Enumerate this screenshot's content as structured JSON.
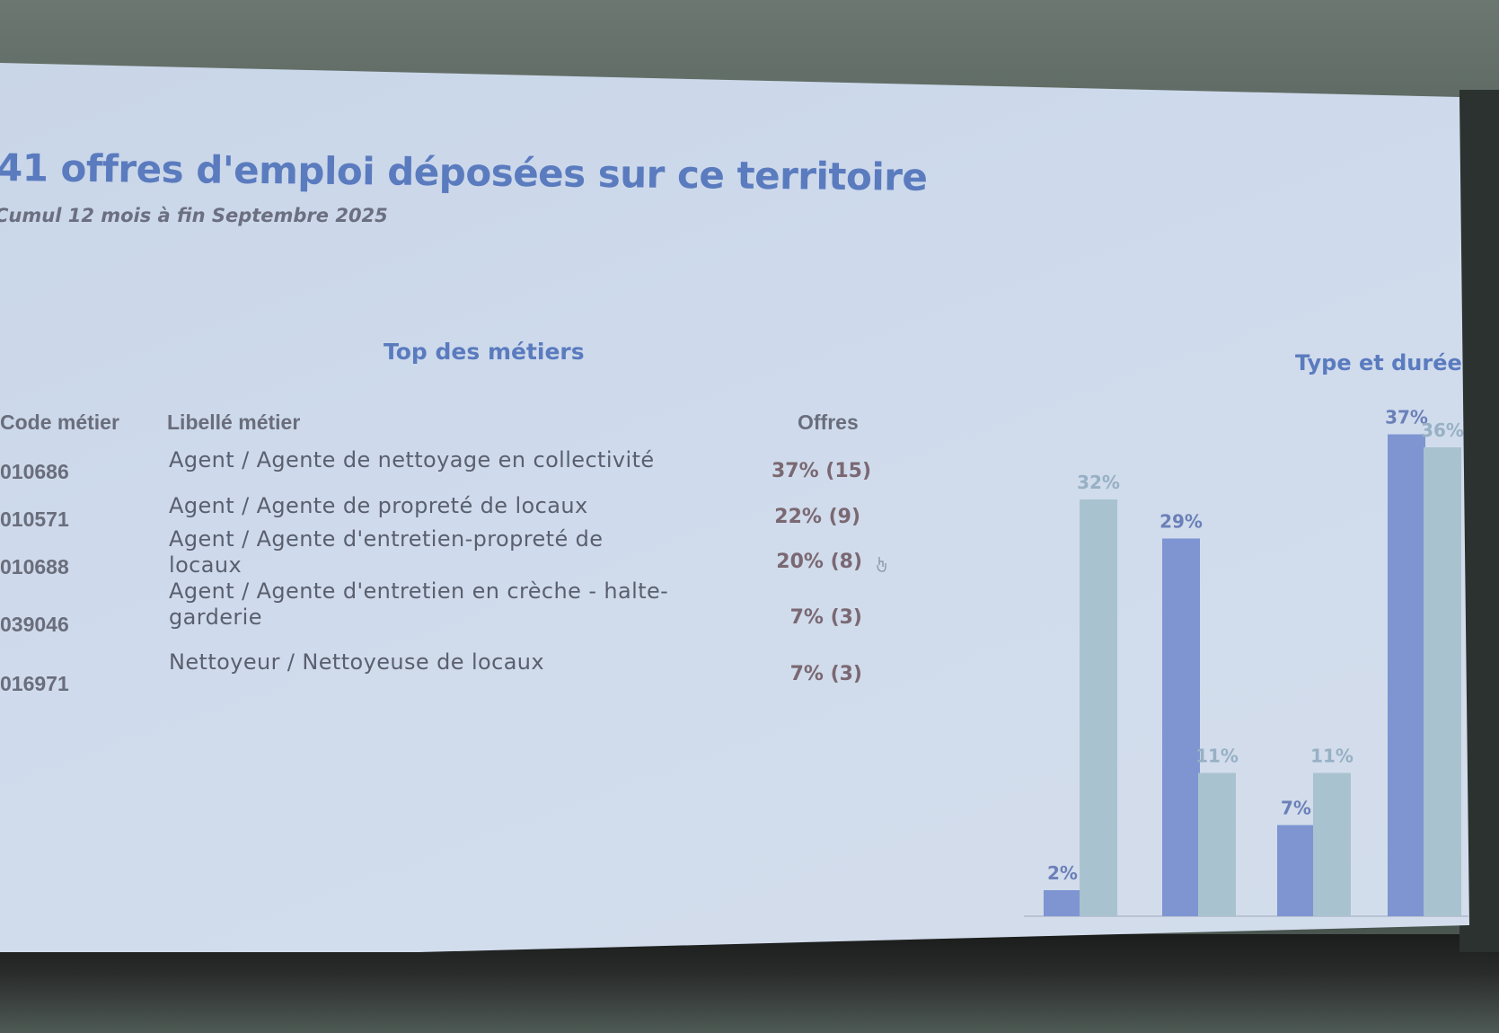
{
  "slide": {
    "title": "41 offres d'emploi déposées sur ce territoire",
    "subtitle": "Cumul 12 mois à fin Septembre 2025"
  },
  "top_metiers": {
    "title": "Top des métiers",
    "headers": {
      "code": "Code métier",
      "label": "Libellé métier",
      "offers": "Offres"
    },
    "rows": [
      {
        "code": "010686",
        "label": "Agent / Agente de nettoyage en collectivité",
        "offers": "37% (15)"
      },
      {
        "code": "010571",
        "label": "Agent / Agente de propreté de locaux",
        "offers": "22% (9)"
      },
      {
        "code": "010688",
        "label": "Agent / Agente d'entretien-propreté de locaux",
        "offers": "20% (8)"
      },
      {
        "code": "039046",
        "label": "Agent / Agente d'entretien en crèche - halte-garderie",
        "offers": "7% (3)"
      },
      {
        "code": "016971",
        "label": "Nettoyeur / Nettoyeuse de locaux",
        "offers": "7% (3)"
      }
    ]
  },
  "chart_data": {
    "type": "bar",
    "title": "Type et durée d",
    "categories": [
      "",
      "",
      "",
      ""
    ],
    "series": [
      {
        "values": [
          2,
          29,
          7,
          37
        ],
        "labels": [
          "2%",
          "29%",
          "7%",
          "37%"
        ],
        "color": "#7e95d2"
      },
      {
        "values": [
          32,
          11,
          11,
          36
        ],
        "labels": [
          "32%",
          "11%",
          "11%",
          "36%"
        ],
        "color": "#a9c2cf"
      }
    ],
    "ylim": [
      0,
      40
    ],
    "grid": false,
    "legend": "none"
  },
  "colors": {
    "accent": "#5b7bbf",
    "bar_primary": "#7e95d2",
    "bar_secondary": "#a9c2cf",
    "offer_text": "#7a6872"
  },
  "icons": {
    "cursor": "hand-cursor-icon"
  }
}
